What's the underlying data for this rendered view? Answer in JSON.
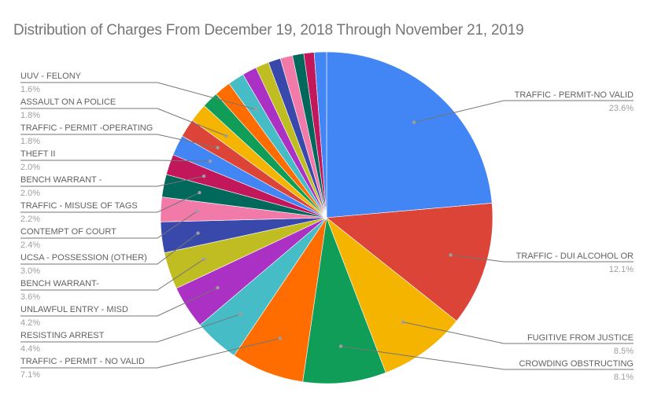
{
  "chart_data": {
    "type": "pie",
    "title": "Distribution of Charges From December 19, 2018 Through November 21, 2019",
    "start_angle": "12 o'clock, clockwise",
    "slices": [
      {
        "label": "TRAFFIC - PERMIT-NO VALID",
        "value": 23.6,
        "pct_label": "23.6%",
        "color": "#4285f4",
        "labeled": true
      },
      {
        "label": "TRAFFIC - DUI ALCOHOL OR",
        "value": 12.1,
        "pct_label": "12.1%",
        "color": "#db4437",
        "labeled": true
      },
      {
        "label": "FUGITIVE FROM JUSTICE",
        "value": 8.5,
        "pct_label": "8.5%",
        "color": "#f4b400",
        "labeled": true
      },
      {
        "label": "CROWDING OBSTRUCTING",
        "value": 8.1,
        "pct_label": "8.1%",
        "color": "#0f9d58",
        "labeled": true
      },
      {
        "label": "TRAFFIC - PERMIT - NO VALID",
        "value": 7.1,
        "pct_label": "7.1%",
        "color": "#ff6d00",
        "labeled": true
      },
      {
        "label": "RESISTING ARREST",
        "value": 4.4,
        "pct_label": "4.4%",
        "color": "#46bdc6",
        "labeled": true
      },
      {
        "label": "UNLAWFUL ENTRY - MISD",
        "value": 4.2,
        "pct_label": "4.2%",
        "color": "#ab30c4",
        "labeled": true
      },
      {
        "label": "BENCH WARRANT-",
        "value": 3.6,
        "pct_label": "3.6%",
        "color": "#c0bd22",
        "labeled": true
      },
      {
        "label": "UCSA - POSSESSION (OTHER)",
        "value": 3.0,
        "pct_label": "3.0%",
        "color": "#3949ab",
        "labeled": true
      },
      {
        "label": "CONTEMPT OF COURT",
        "value": 2.4,
        "pct_label": "2.4%",
        "color": "#f27aa8",
        "labeled": true
      },
      {
        "label": "TRAFFIC - MISUSE OF TAGS",
        "value": 2.2,
        "pct_label": "2.2%",
        "color": "#00695c",
        "labeled": true
      },
      {
        "label": "BENCH WARRANT -",
        "value": 2.0,
        "pct_label": "2.0%",
        "color": "#c2185b",
        "labeled": true
      },
      {
        "label": "THEFT II",
        "value": 2.0,
        "pct_label": "2.0%",
        "color": "#4285f4",
        "labeled": true
      },
      {
        "label": "TRAFFIC - PERMIT -OPERATING",
        "value": 1.8,
        "pct_label": "1.8%",
        "color": "#db4437",
        "labeled": true
      },
      {
        "label": "ASSAULT ON A POLICE",
        "value": 1.8,
        "pct_label": "1.8%",
        "color": "#f4b400",
        "labeled": true
      },
      {
        "label": "",
        "value": 1.6,
        "pct_label": "",
        "color": "#0f9d58",
        "labeled": false
      },
      {
        "label": "",
        "value": 1.6,
        "pct_label": "",
        "color": "#ff6d00",
        "labeled": false
      },
      {
        "label": "UUV - FELONY",
        "value": 1.6,
        "pct_label": "1.6%",
        "color": "#46bdc6",
        "labeled": true
      },
      {
        "label": "",
        "value": 1.4,
        "pct_label": "",
        "color": "#ab30c4",
        "labeled": false
      },
      {
        "label": "",
        "value": 1.3,
        "pct_label": "",
        "color": "#c0bd22",
        "labeled": false
      },
      {
        "label": "",
        "value": 1.2,
        "pct_label": "",
        "color": "#3949ab",
        "labeled": false
      },
      {
        "label": "",
        "value": 1.2,
        "pct_label": "",
        "color": "#f27aa8",
        "labeled": false
      },
      {
        "label": "",
        "value": 1.1,
        "pct_label": "",
        "color": "#00695c",
        "labeled": false
      },
      {
        "label": "",
        "value": 1.0,
        "pct_label": "",
        "color": "#c2185b",
        "labeled": false
      },
      {
        "label": "",
        "value": 1.2,
        "pct_label": "",
        "color": "#4285f4",
        "labeled": false
      }
    ],
    "legend": "none (callout labels)",
    "grid": false
  },
  "labels_left": [
    {
      "name": "UUV - FELONY",
      "pct": "1.6%"
    },
    {
      "name": "ASSAULT ON A POLICE",
      "pct": "1.8%"
    },
    {
      "name": "TRAFFIC - PERMIT -OPERATING",
      "pct": "1.8%"
    },
    {
      "name": "THEFT II",
      "pct": "2.0%"
    },
    {
      "name": "BENCH WARRANT -",
      "pct": "2.0%"
    },
    {
      "name": "TRAFFIC - MISUSE OF TAGS",
      "pct": "2.2%"
    },
    {
      "name": "CONTEMPT OF COURT",
      "pct": "2.4%"
    },
    {
      "name": "UCSA - POSSESSION (OTHER)",
      "pct": "3.0%"
    },
    {
      "name": "BENCH WARRANT-",
      "pct": "3.6%"
    },
    {
      "name": "UNLAWFUL ENTRY - MISD",
      "pct": "4.2%"
    },
    {
      "name": "RESISTING ARREST",
      "pct": "4.4%"
    },
    {
      "name": "TRAFFIC - PERMIT - NO VALID",
      "pct": "7.1%"
    }
  ],
  "labels_right": [
    {
      "name": "TRAFFIC - PERMIT-NO VALID",
      "pct": "23.6%"
    },
    {
      "name": "TRAFFIC - DUI ALCOHOL OR",
      "pct": "12.1%"
    },
    {
      "name": "FUGITIVE FROM JUSTICE",
      "pct": "8.5%"
    },
    {
      "name": "CROWDING OBSTRUCTING",
      "pct": "8.1%"
    }
  ]
}
